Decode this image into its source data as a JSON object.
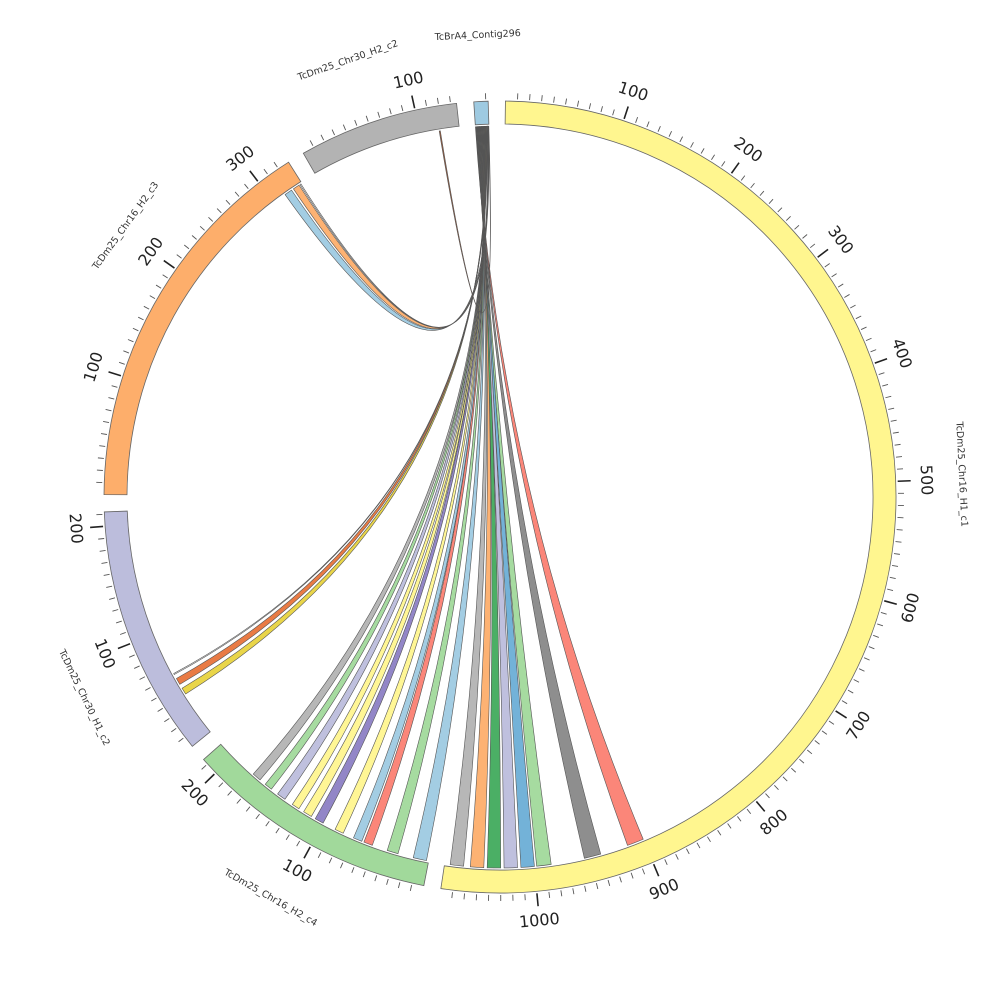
{
  "chart_data": {
    "type": "chord",
    "segments": [
      {
        "name": "TcBrA4_Contig296",
        "length": 12,
        "color": "#9ecae1",
        "tick_labels": []
      },
      {
        "name": "TcDm25_Chr16_H1_c1",
        "length": 1080,
        "color": "#fff68f",
        "tick_labels": [
          "100",
          "200",
          "300",
          "400",
          "500",
          "600",
          "700",
          "800",
          "900",
          "1000"
        ]
      },
      {
        "name": "TcDm25_Chr16_H2_c4",
        "length": 215,
        "color": "#a1d99b",
        "tick_labels": [
          "100",
          "200"
        ]
      },
      {
        "name": "TcDm25_Chr30_H1_c2",
        "length": 212,
        "color": "#bcbddc",
        "tick_labels": [
          "100",
          "200"
        ]
      },
      {
        "name": "TcDm25_Chr16_H2_c3",
        "length": 330,
        "color": "#fdae6b",
        "tick_labels": [
          "100",
          "200",
          "300"
        ]
      },
      {
        "name": "TcDm25_Chr30_H2_c2",
        "length": 135,
        "color": "#b3b3b3",
        "tick_labels": [
          "100"
        ]
      }
    ],
    "links": [
      {
        "source": "TcBrA4_Contig296",
        "target": "TcDm25_Chr16_H1_c1",
        "target_start": 900,
        "target_end": 915,
        "color": "#fb8072"
      },
      {
        "source": "TcBrA4_Contig296",
        "target": "TcDm25_Chr16_H1_c1",
        "target_start": 940,
        "target_end": 955,
        "color": "#888888"
      },
      {
        "source": "TcBrA4_Contig296",
        "target": "TcDm25_Chr16_H1_c1",
        "target_start": 985,
        "target_end": 998,
        "color": "#a1d99b"
      },
      {
        "source": "TcBrA4_Contig296",
        "target": "TcDm25_Chr16_H1_c1",
        "target_start": 1000,
        "target_end": 1012,
        "color": "#6baed6"
      },
      {
        "source": "TcBrA4_Contig296",
        "target": "TcDm25_Chr16_H1_c1",
        "target_start": 1015,
        "target_end": 1027,
        "color": "#bcbddc"
      },
      {
        "source": "TcBrA4_Contig296",
        "target": "TcDm25_Chr16_H1_c1",
        "target_start": 1030,
        "target_end": 1042,
        "color": "#41ab5d"
      },
      {
        "source": "TcBrA4_Contig296",
        "target": "TcDm25_Chr16_H1_c1",
        "target_start": 1045,
        "target_end": 1057,
        "color": "#fdae6b"
      },
      {
        "source": "TcBrA4_Contig296",
        "target": "TcDm25_Chr16_H1_c1",
        "target_start": 1063,
        "target_end": 1075,
        "color": "#b3b3b3"
      },
      {
        "source": "TcBrA4_Contig296",
        "target": "TcDm25_Chr16_H2_c4",
        "target_start": 2,
        "target_end": 14,
        "color": "#9ecae1"
      },
      {
        "source": "TcBrA4_Contig296",
        "target": "TcDm25_Chr16_H2_c4",
        "target_start": 28,
        "target_end": 38,
        "color": "#a1d99b"
      },
      {
        "source": "TcBrA4_Contig296",
        "target": "TcDm25_Chr16_H2_c4",
        "target_start": 52,
        "target_end": 60,
        "color": "#fb8072"
      },
      {
        "source": "TcBrA4_Contig296",
        "target": "TcDm25_Chr16_H2_c4",
        "target_start": 62,
        "target_end": 70,
        "color": "#9ecae1"
      },
      {
        "source": "TcBrA4_Contig296",
        "target": "TcDm25_Chr16_H2_c4",
        "target_start": 80,
        "target_end": 88,
        "color": "#fff68f"
      },
      {
        "source": "TcBrA4_Contig296",
        "target": "TcDm25_Chr16_H2_c4",
        "target_start": 100,
        "target_end": 108,
        "color": "#8c7fc4"
      },
      {
        "source": "TcBrA4_Contig296",
        "target": "TcDm25_Chr16_H2_c4",
        "target_start": 112,
        "target_end": 120,
        "color": "#fff68f"
      },
      {
        "source": "TcBrA4_Contig296",
        "target": "TcDm25_Chr16_H2_c4",
        "target_start": 125,
        "target_end": 132,
        "color": "#fff68f"
      },
      {
        "source": "TcBrA4_Contig296",
        "target": "TcDm25_Chr16_H2_c4",
        "target_start": 140,
        "target_end": 148,
        "color": "#bcbddc"
      },
      {
        "source": "TcBrA4_Contig296",
        "target": "TcDm25_Chr16_H2_c4",
        "target_start": 155,
        "target_end": 162,
        "color": "#a1d99b"
      },
      {
        "source": "TcBrA4_Contig296",
        "target": "TcDm25_Chr16_H2_c4",
        "target_start": 168,
        "target_end": 176,
        "color": "#b3b3b3"
      },
      {
        "source": "TcBrA4_Contig296",
        "target": "TcDm25_Chr30_H1_c2",
        "target_start": 40,
        "target_end": 46,
        "color": "#e8d33f"
      },
      {
        "source": "TcBrA4_Contig296",
        "target": "TcDm25_Chr30_H1_c2",
        "target_start": 50,
        "target_end": 56,
        "color": "#e8743b"
      },
      {
        "source": "TcBrA4_Contig296",
        "target": "TcDm25_Chr30_H1_c2",
        "target_start": 60,
        "target_end": 61,
        "color": "#ffffff"
      },
      {
        "source": "TcBrA4_Contig296",
        "target": "TcDm25_Chr16_H2_c3",
        "target_start": 312,
        "target_end": 319,
        "color": "#9ecae1"
      },
      {
        "source": "TcBrA4_Contig296",
        "target": "TcDm25_Chr16_H2_c3",
        "target_start": 321,
        "target_end": 327,
        "color": "#fdae6b"
      },
      {
        "source": "TcBrA4_Contig296",
        "target": "TcDm25_Chr16_H2_c3",
        "target_start": 328,
        "target_end": 329,
        "color": "#ffffff"
      },
      {
        "source": "TcBrA4_Contig296",
        "target": "TcDm25_Chr30_H2_c2",
        "target_start": 117,
        "target_end": 118,
        "color": "#a0522d"
      }
    ],
    "title": "",
    "legend": "none"
  }
}
